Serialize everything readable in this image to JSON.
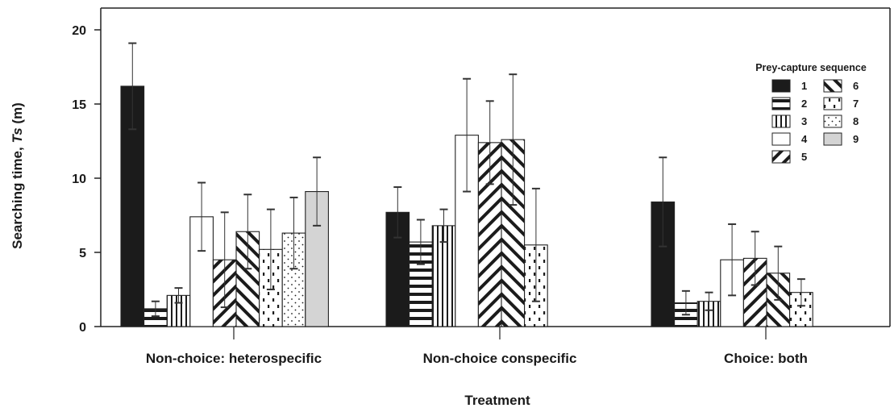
{
  "chart_data": {
    "type": "bar",
    "xlabel": "Treatment",
    "ylabel_prefix": "Searching time, ",
    "ylabel_italic": "Ts",
    "ylabel_suffix": " (m)",
    "ylim": [
      0,
      21
    ],
    "yticks": [
      0,
      5,
      10,
      15,
      20
    ],
    "grid": false,
    "legend": {
      "title": "Prey-capture sequence",
      "placement": "top-right",
      "entries": [
        "1",
        "2",
        "3",
        "4",
        "5",
        "6",
        "7",
        "8",
        "9"
      ]
    },
    "categories": [
      "Non-choice: heterospecific",
      "Non-choice conspecific",
      "Choice: both"
    ],
    "series": [
      {
        "name": "1",
        "values": [
          16.2,
          7.7,
          8.4
        ],
        "errors": [
          2.9,
          1.7,
          3.0
        ],
        "pattern": "solid"
      },
      {
        "name": "2",
        "values": [
          1.2,
          5.7,
          1.6
        ],
        "errors": [
          0.5,
          1.5,
          0.8
        ],
        "pattern": "hlines"
      },
      {
        "name": "3",
        "values": [
          2.1,
          6.8,
          1.7
        ],
        "errors": [
          0.5,
          1.1,
          0.6
        ],
        "pattern": "vlines"
      },
      {
        "name": "4",
        "values": [
          7.4,
          12.9,
          4.5
        ],
        "errors": [
          2.3,
          3.8,
          2.4
        ],
        "pattern": "empty"
      },
      {
        "name": "5",
        "values": [
          4.5,
          12.4,
          4.6
        ],
        "errors": [
          3.2,
          2.8,
          1.8
        ],
        "pattern": "diag-up"
      },
      {
        "name": "6",
        "values": [
          6.4,
          12.6,
          3.6
        ],
        "errors": [
          2.5,
          4.4,
          1.8
        ],
        "pattern": "diag-down"
      },
      {
        "name": "7",
        "values": [
          5.2,
          5.5,
          2.3
        ],
        "errors": [
          2.7,
          3.8,
          0.9
        ],
        "pattern": "dashes"
      },
      {
        "name": "8",
        "values": [
          6.3,
          null,
          null
        ],
        "errors": [
          2.4,
          null,
          null
        ],
        "pattern": "dots"
      },
      {
        "name": "9",
        "values": [
          9.1,
          null,
          null
        ],
        "errors": [
          2.3,
          null,
          null
        ],
        "pattern": "gray"
      }
    ],
    "colors": {
      "bar_solid": "#1b1b1b",
      "bar_gray": "#d4d4d4",
      "outline": "#222222"
    }
  }
}
